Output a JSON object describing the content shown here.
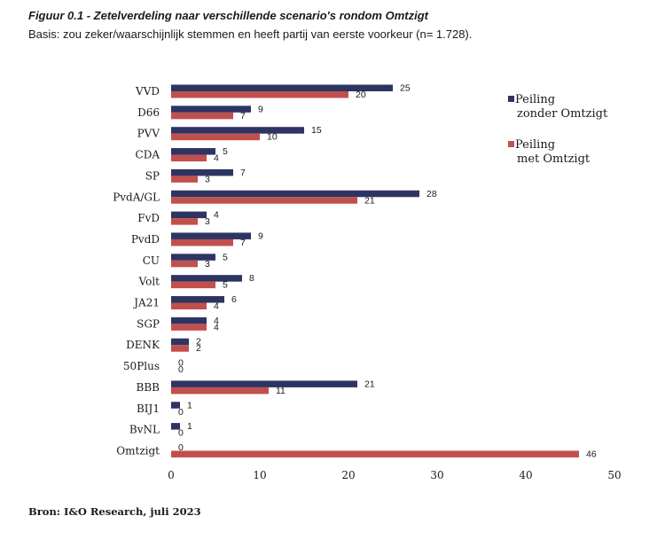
{
  "figure": {
    "title": "Figuur 0.1 - Zetelverdeling naar verschillende scenario's rondom Omtzigt",
    "subtitle": "Basis: zou zeker/waarschijnlijk stemmen en heeft partij van eerste voorkeur (n= 1.728).",
    "source": "Bron: I&O Research, juli 2023"
  },
  "chart_data": {
    "type": "bar",
    "orientation": "horizontal",
    "categories": [
      "VVD",
      "D66",
      "PVV",
      "CDA",
      "SP",
      "PvdA/GL",
      "FvD",
      "PvdD",
      "CU",
      "Volt",
      "JA21",
      "SGP",
      "DENK",
      "50Plus",
      "BBB",
      "BIJ1",
      "BvNL",
      "Omtzigt"
    ],
    "series": [
      {
        "name": "Peiling zonder Omtzigt",
        "legend_lines": [
          "Peiling",
          "zonder Omtzigt"
        ],
        "color": "#2e3462",
        "values": [
          25,
          9,
          15,
          5,
          7,
          28,
          4,
          9,
          5,
          8,
          6,
          4,
          2,
          0,
          21,
          1,
          1,
          0
        ]
      },
      {
        "name": "Peiling met Omtzigt",
        "legend_lines": [
          "Peiling",
          "met Omtzigt"
        ],
        "color": "#c0504d",
        "values": [
          20,
          7,
          10,
          4,
          3,
          21,
          3,
          7,
          3,
          5,
          4,
          4,
          2,
          0,
          11,
          0,
          0,
          46
        ]
      }
    ],
    "xlim": [
      0,
      50
    ],
    "xticks": [
      0,
      10,
      20,
      30,
      40,
      50
    ],
    "grid": false,
    "legend_position": "top-right"
  }
}
